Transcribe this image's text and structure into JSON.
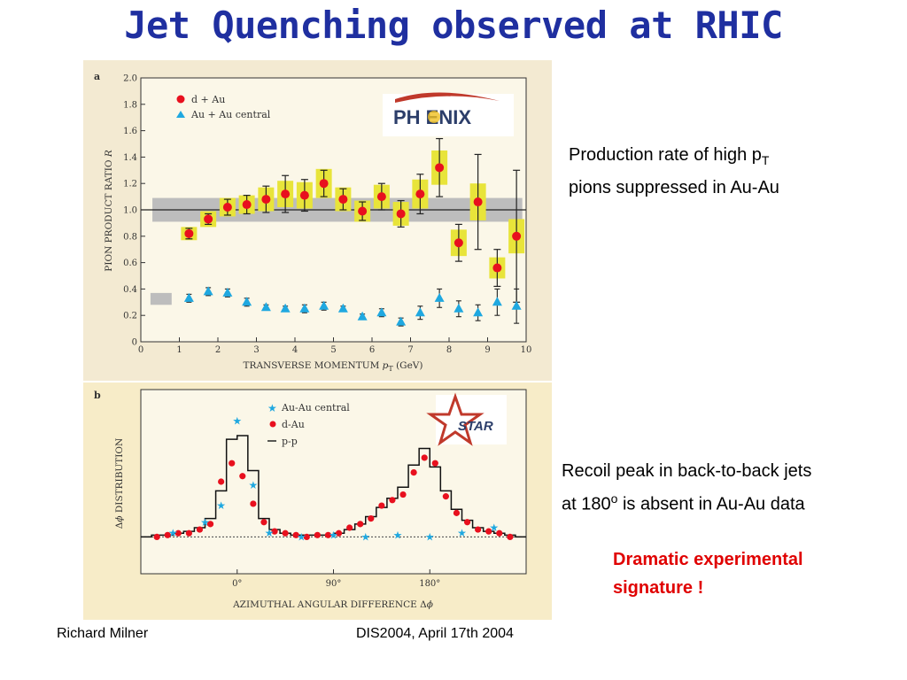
{
  "slide_title": "Jet Quenching observed at RHIC",
  "notes": {
    "phenix_note_line1_pre": "Production rate of high p",
    "phenix_note_line1_sub": "T",
    "phenix_note_line2": "pions suppressed in Au-Au",
    "star_note_line1": "Recoil peak in back-to-back jets",
    "star_note_line2_pre": "at 180",
    "star_note_line2_sup": "o",
    "star_note_line2_post": " is absent in Au-Au data",
    "highlight_line1": "Dramatic experimental",
    "highlight_line2": "signature !"
  },
  "footer": {
    "author": "Richard Milner",
    "event": "DIS2004, April 17th 2004"
  },
  "colors": {
    "title": "#1f2fa0",
    "highlight": "#e00000",
    "panel_a_bg": "#f3ead2",
    "panel_b_bg": "#f7ecc8",
    "red_marker": "#e8101e",
    "blue_marker": "#1fa8e0",
    "yellow_box": "#e8e43a",
    "grey_band": "#bdbdbd"
  },
  "chart_data": [
    {
      "type": "scatter",
      "panel_label": "a",
      "logo_text": "PH ENIX",
      "xlabel_pre": "TRANSVERSE MOMENTUM ",
      "xlabel_var": "p",
      "xlabel_sub": "T",
      "xlabel_post": " (GeV)",
      "ylabel_pre": "PION PRODUCT RATIO ",
      "ylabel_var": "R",
      "xlim": [
        0,
        10
      ],
      "ylim": [
        0,
        2.0
      ],
      "xticks": [
        "0",
        "1",
        "2",
        "3",
        "4",
        "5",
        "6",
        "7",
        "8",
        "9",
        "10"
      ],
      "yticks": [
        "0",
        "0.2",
        "0.4",
        "0.6",
        "0.8",
        "1.0",
        "1.2",
        "1.4",
        "1.6",
        "1.8",
        "2.0"
      ],
      "reference_line": 1.0,
      "normalization_band": [
        0.91,
        1.09
      ],
      "auau_norm_box": [
        0.28,
        0.37
      ],
      "legend_position": "top-left",
      "series": [
        {
          "name": "d + Au",
          "marker": "circle",
          "x": [
            1.25,
            1.75,
            2.25,
            2.75,
            3.25,
            3.75,
            4.25,
            4.75,
            5.25,
            5.75,
            6.25,
            6.75,
            7.25,
            7.75,
            8.25,
            8.75,
            9.25,
            9.75
          ],
          "y": [
            0.82,
            0.93,
            1.02,
            1.04,
            1.08,
            1.12,
            1.11,
            1.2,
            1.08,
            0.99,
            1.1,
            0.97,
            1.12,
            1.32,
            0.75,
            1.06,
            0.56,
            0.8
          ],
          "stat_err": [
            0.04,
            0.04,
            0.06,
            0.07,
            0.1,
            0.14,
            0.12,
            0.1,
            0.08,
            0.07,
            0.1,
            0.1,
            0.15,
            0.22,
            0.14,
            0.36,
            0.14,
            0.5
          ],
          "syst_err": [
            0.05,
            0.06,
            0.07,
            0.07,
            0.09,
            0.1,
            0.1,
            0.11,
            0.09,
            0.08,
            0.09,
            0.09,
            0.11,
            0.13,
            0.1,
            0.14,
            0.08,
            0.13
          ]
        },
        {
          "name": "Au + Au central",
          "marker": "triangle",
          "x": [
            1.25,
            1.75,
            2.25,
            2.75,
            3.25,
            3.75,
            4.25,
            4.75,
            5.25,
            5.75,
            6.25,
            6.75,
            7.25,
            7.75,
            8.25,
            8.75,
            9.25,
            9.75
          ],
          "y": [
            0.33,
            0.38,
            0.37,
            0.3,
            0.26,
            0.25,
            0.25,
            0.27,
            0.25,
            0.19,
            0.22,
            0.15,
            0.22,
            0.33,
            0.25,
            0.22,
            0.3,
            0.27
          ],
          "stat_err": [
            0.03,
            0.03,
            0.03,
            0.03,
            0.02,
            0.02,
            0.03,
            0.03,
            0.02,
            0.02,
            0.03,
            0.03,
            0.05,
            0.07,
            0.06,
            0.06,
            0.1,
            0.13
          ]
        }
      ]
    },
    {
      "type": "line",
      "panel_label": "b",
      "logo_text": "STAR",
      "xlabel_pre": "AZIMUTHAL ANGULAR DIFFERENCE Δ",
      "xlabel_var": "ϕ",
      "ylabel_pre": "Δ",
      "ylabel_var": "ϕ",
      "ylabel_post": " DISTRIBUTION",
      "xlim": [
        -90,
        270
      ],
      "xticks": [
        "0°",
        "90°",
        "180°"
      ],
      "xtick_values": [
        0,
        90,
        180
      ],
      "ylim": [
        0,
        1.0
      ],
      "baseline": 0.2,
      "legend_position": "top-right",
      "series": [
        {
          "name": "Au-Au central",
          "marker": "star",
          "x": [
            -60,
            -30,
            -15,
            0,
            15,
            30,
            60,
            90,
            120,
            150,
            180,
            210,
            240
          ],
          "y": [
            0.22,
            0.28,
            0.37,
            0.83,
            0.48,
            0.22,
            0.2,
            0.21,
            0.2,
            0.21,
            0.2,
            0.22,
            0.25
          ]
        },
        {
          "name": "d-Au",
          "marker": "circle",
          "x": [
            -75,
            -65,
            -55,
            -45,
            -35,
            -25,
            -15,
            -5,
            5,
            15,
            25,
            35,
            45,
            55,
            65,
            75,
            85,
            95,
            105,
            115,
            125,
            135,
            145,
            155,
            165,
            175,
            185,
            195,
            205,
            215,
            225,
            235,
            245,
            255
          ],
          "y": [
            0.2,
            0.21,
            0.22,
            0.22,
            0.24,
            0.27,
            0.5,
            0.6,
            0.53,
            0.38,
            0.28,
            0.23,
            0.22,
            0.21,
            0.2,
            0.21,
            0.21,
            0.22,
            0.25,
            0.27,
            0.3,
            0.37,
            0.4,
            0.43,
            0.55,
            0.63,
            0.6,
            0.42,
            0.33,
            0.28,
            0.24,
            0.23,
            0.22,
            0.2
          ]
        },
        {
          "name": "p-p",
          "marker": "histogram",
          "x": [
            -85,
            -75,
            -65,
            -55,
            -45,
            -35,
            -25,
            -15,
            -5,
            5,
            15,
            25,
            35,
            45,
            55,
            65,
            75,
            85,
            95,
            105,
            115,
            125,
            135,
            145,
            155,
            165,
            175,
            185,
            195,
            205,
            215,
            225,
            235,
            245,
            255,
            265
          ],
          "y": [
            0.2,
            0.21,
            0.21,
            0.22,
            0.23,
            0.25,
            0.3,
            0.45,
            0.73,
            0.75,
            0.56,
            0.3,
            0.24,
            0.22,
            0.21,
            0.21,
            0.21,
            0.21,
            0.22,
            0.24,
            0.27,
            0.31,
            0.36,
            0.41,
            0.47,
            0.59,
            0.68,
            0.58,
            0.45,
            0.35,
            0.29,
            0.25,
            0.23,
            0.22,
            0.21,
            0.2
          ]
        }
      ]
    }
  ]
}
